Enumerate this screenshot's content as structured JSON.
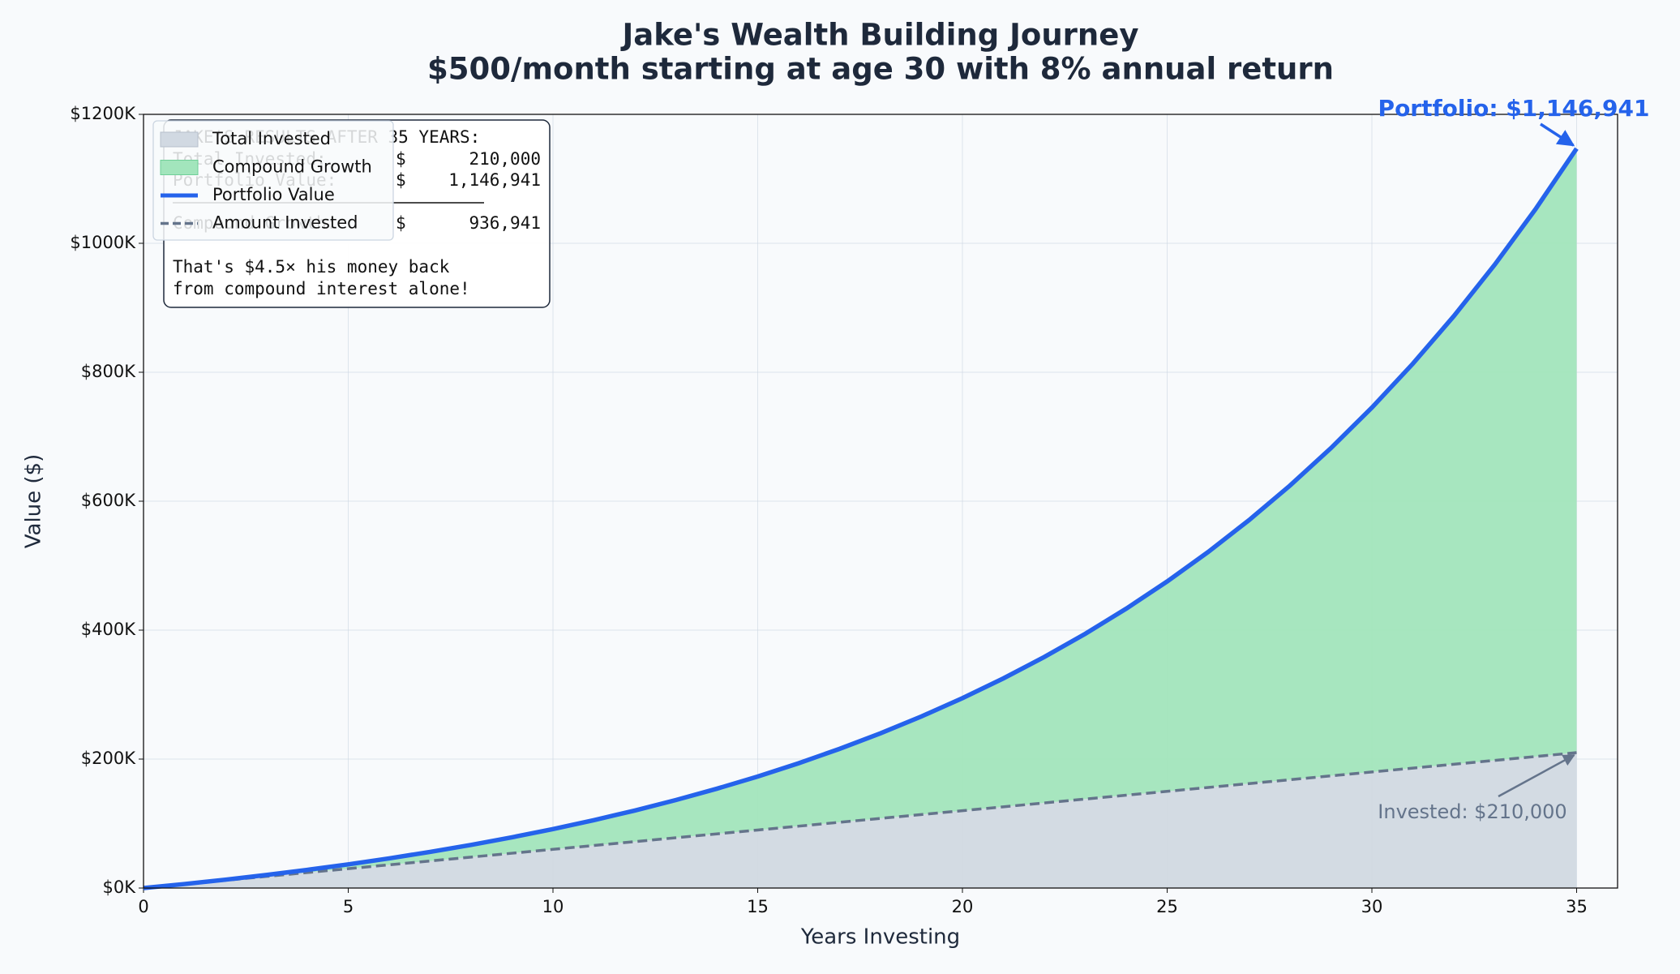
{
  "chart_data": {
    "type": "line",
    "title": "Jake's Wealth Building Journey",
    "subtitle": "$500/month starting at age 30 with 8% annual return",
    "xlabel": "Years Investing",
    "ylabel": "Value ($)",
    "x": [
      0,
      1,
      2,
      3,
      4,
      5,
      6,
      7,
      8,
      9,
      10,
      11,
      12,
      13,
      14,
      15,
      16,
      17,
      18,
      19,
      20,
      21,
      22,
      23,
      24,
      25,
      26,
      27,
      28,
      29,
      30,
      31,
      32,
      33,
      34,
      35
    ],
    "series": [
      {
        "name": "Portfolio Value",
        "color": "#2563eb",
        "style": "solid",
        "values": [
          0,
          6225,
          12967,
          20268,
          28175,
          36739,
          46013,
          56057,
          66935,
          78715,
          91473,
          105290,
          120254,
          136460,
          154011,
          173019,
          193604,
          215898,
          240043,
          266191,
          294510,
          325179,
          358394,
          394365,
          433322,
          475513,
          521205,
          570690,
          624281,
          682322,
          745179,
          813255,
          886980,
          966824,
          1053296,
          1146941
        ]
      },
      {
        "name": "Amount Invested",
        "color": "#64748b",
        "style": "dashed",
        "values": [
          0,
          6000,
          12000,
          18000,
          24000,
          30000,
          36000,
          42000,
          48000,
          54000,
          60000,
          66000,
          72000,
          78000,
          84000,
          90000,
          96000,
          102000,
          108000,
          114000,
          120000,
          126000,
          132000,
          138000,
          144000,
          150000,
          156000,
          162000,
          168000,
          174000,
          180000,
          186000,
          192000,
          198000,
          204000,
          210000
        ]
      }
    ],
    "areas": [
      {
        "name": "Total Invested",
        "color": "#d1d9e2"
      },
      {
        "name": "Compound Growth",
        "color": "#a2e5bc"
      }
    ],
    "xlim": [
      0,
      36
    ],
    "ylim": [
      0,
      1200000
    ],
    "xticks": [
      0,
      5,
      10,
      15,
      20,
      25,
      30,
      35
    ],
    "yticks": [
      {
        "value": 0,
        "label": "$0K"
      },
      {
        "value": 200000,
        "label": "$200K"
      },
      {
        "value": 400000,
        "label": "$400K"
      },
      {
        "value": 600000,
        "label": "$600K"
      },
      {
        "value": 800000,
        "label": "$800K"
      },
      {
        "value": 1000000,
        "label": "$1000K"
      },
      {
        "value": 1200000,
        "label": "$1200K"
      }
    ],
    "grid": true,
    "legend": "upper left",
    "annotations": [
      {
        "text": "Portfolio: $1,146,941",
        "color": "#2563eb"
      },
      {
        "text": "Invested: $210,000",
        "color": "#64748b"
      }
    ],
    "summary_box": {
      "heading": "JAKE'S RESULTS AFTER 35 YEARS:",
      "rows": [
        [
          "Total Invested:",
          "$",
          "210,000"
        ],
        [
          "Portfolio Value:",
          "$",
          "1,146,941"
        ],
        [
          "Compound Growth:",
          "$",
          "936,941"
        ]
      ],
      "note": [
        "That's $4.5× his money back",
        "from compound interest alone!"
      ]
    }
  }
}
